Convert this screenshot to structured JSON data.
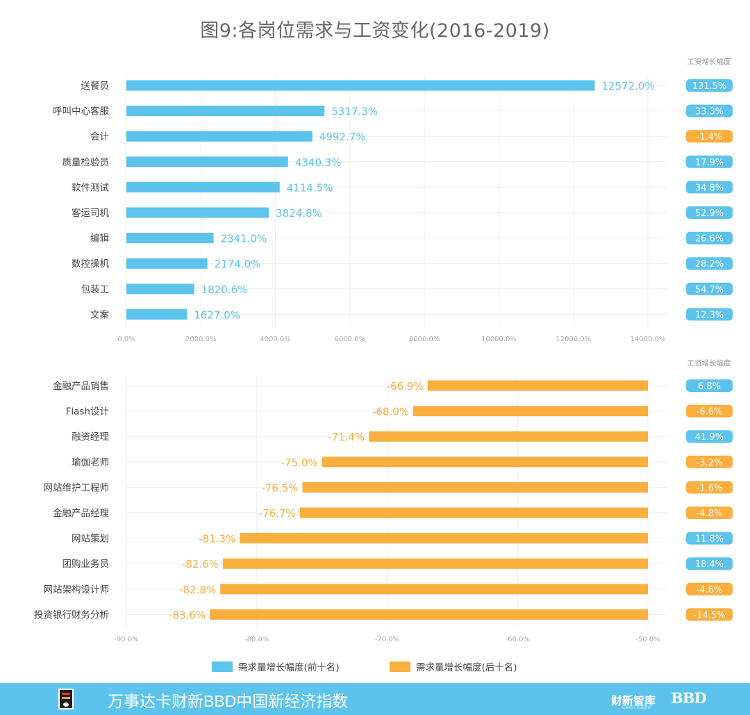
{
  "title": "图9:各岗位需求与工资变化(2016-2019)",
  "colors": {
    "top": "#5bc3ec",
    "bottom": "#f9ae3e",
    "grid": "#eeeeee",
    "tick": "#aaaaaa",
    "label": "#444444"
  },
  "chart_data": [
    {
      "type": "bar",
      "orientation": "horizontal",
      "name": "需求量增长幅度(前十名)",
      "categories": [
        "送餐员",
        "呼叫中心客服",
        "会计",
        "质量检验员",
        "软件测试",
        "客运司机",
        "编辑",
        "数控操机",
        "包装工",
        "文案"
      ],
      "values": [
        12572.0,
        5317.3,
        4992.7,
        4340.3,
        4114.5,
        3824.8,
        2341.0,
        2174.0,
        1820.6,
        1627.0
      ],
      "value_labels": [
        "12572.0%",
        "5317.3%",
        "4992.7%",
        "4340.3%",
        "4114.5%",
        "3824.8%",
        "2341.0%",
        "2174.0%",
        "1820.6%",
        "1627.0%"
      ],
      "xlim": [
        0,
        14000
      ],
      "xticks": [
        "0.0%",
        "2000.0%",
        "4000.0%",
        "6000.0%",
        "8000.0%",
        "10000.0%",
        "12000.0%",
        "14000.0%"
      ],
      "side_title": "工资增长幅度",
      "side_values": [
        131.5,
        33.3,
        -1.4,
        17.9,
        34.8,
        52.9,
        26.6,
        28.2,
        54.7,
        12.3
      ],
      "side_labels": [
        "131.5%",
        "33.3%",
        "-1.4%",
        "17.9%",
        "34.8%",
        "52.9%",
        "26.6%",
        "28.2%",
        "54.7%",
        "12.3%"
      ]
    },
    {
      "type": "bar",
      "orientation": "horizontal",
      "name": "需求量增长幅度(后十名)",
      "categories": [
        "金融产品销售",
        "Flash设计",
        "融资经理",
        "瑜伽老师",
        "网站维护工程师",
        "金融产品经理",
        "网站策划",
        "团购业务员",
        "网站架构设计师",
        "投资银行财务分析"
      ],
      "values": [
        -66.9,
        -68.0,
        -71.4,
        -75.0,
        -76.5,
        -76.7,
        -81.3,
        -82.6,
        -82.8,
        -83.6
      ],
      "value_labels": [
        "-66.9%",
        "-68.0%",
        "-71.4%",
        "-75.0%",
        "-76.5%",
        "-76.7%",
        "-81.3%",
        "-82.6%",
        "-82.8%",
        "-83.6%"
      ],
      "xlim": [
        -90,
        -50
      ],
      "xticks": [
        "-90.0%",
        "-80.0%",
        "-70.0%",
        "-60.0%",
        "-50.0%"
      ],
      "side_title": "工资增长幅度",
      "side_values": [
        6.8,
        -6.6,
        41.9,
        -3.2,
        -1.6,
        -4.8,
        11.8,
        18.4,
        -4.6,
        -14.5
      ],
      "side_labels": [
        "6.8%",
        "-6.6%",
        "41.9%",
        "-3.2%",
        "-1.6%",
        "-4.8%",
        "11.8%",
        "18.4%",
        "-4.6%",
        "-14.5%"
      ]
    }
  ],
  "legend": [
    {
      "label": "需求量增长幅度(前十名)",
      "color": "#5bc3ec"
    },
    {
      "label": "需求量增长幅度(后十名)",
      "color": "#f9ae3e"
    }
  ],
  "footer": {
    "text": "万事达卡财新BBD中国新经济指数",
    "brand": "财新智库",
    "brand_sub": "Caixin Insight",
    "bbd": "BBD"
  }
}
